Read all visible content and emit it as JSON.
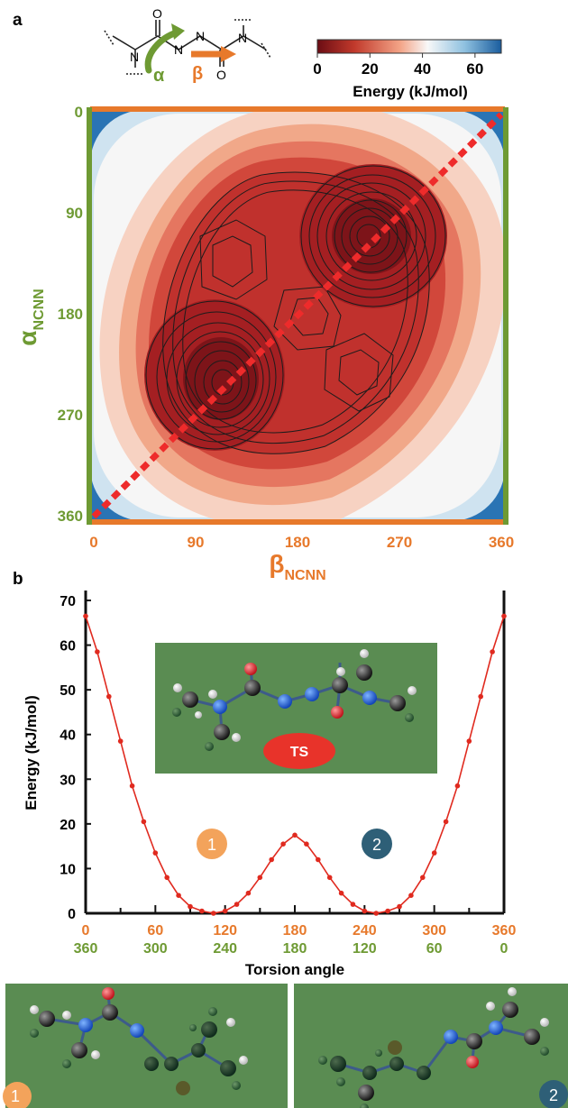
{
  "panel_a": {
    "label": "a",
    "alpha_symbol": "α",
    "beta_symbol": "β",
    "atom_labels": {
      "o1": "O",
      "n1": "N",
      "n2": "N",
      "n3": "N",
      "n4": "N",
      "o2": "O"
    },
    "colorbar": {
      "ticks": [
        "0",
        "20",
        "40",
        "60"
      ],
      "title": "Energy (kJ/mol)",
      "range": [
        0,
        70
      ],
      "colors": [
        "#6b0d14",
        "#c1392b",
        "#f3a487",
        "#f8f8f8",
        "#8fc1e0",
        "#1a5d9e"
      ]
    },
    "y_axis": {
      "symbol": "α",
      "subscript": "NCNN",
      "ticks": [
        "0",
        "90",
        "180",
        "270",
        "360"
      ],
      "color": "#6e9a33"
    },
    "x_axis": {
      "symbol": "β",
      "subscript": "NCNN",
      "ticks": [
        "0",
        "90",
        "180",
        "270",
        "360"
      ],
      "color": "#e7792b"
    },
    "diagonal_color": "#ee2b2b"
  },
  "panel_b": {
    "label": "b",
    "ylabel": "Energy (kJ/mol)",
    "xlabel": "Torsion angle",
    "ts_label": "TS",
    "marker1": "1",
    "marker2": "2",
    "x_ticks_top": [
      "0",
      "60",
      "120",
      "180",
      "240",
      "300",
      "360"
    ],
    "x_ticks_bottom": [
      "360",
      "300",
      "240",
      "180",
      "120",
      "60",
      "0"
    ],
    "y_ticks": [
      "0",
      "10",
      "20",
      "30",
      "40",
      "50",
      "60",
      "70"
    ],
    "line_color": "#e02a1f",
    "marker1_color": "#f3a35b",
    "marker2_color": "#2e5f77"
  },
  "panel_c": {
    "marker1": "1",
    "marker2": "2"
  },
  "chart_data": [
    {
      "type": "heatmap",
      "title": "",
      "xlabel": "βNCNN",
      "ylabel": "αNCNN",
      "xlim": [
        0,
        360
      ],
      "ylim": [
        0,
        360
      ],
      "x_ticks": [
        0,
        90,
        180,
        270,
        360
      ],
      "y_ticks": [
        0,
        90,
        180,
        270,
        360
      ],
      "colorbar": {
        "label": "Energy (kJ/mol)",
        "range": [
          0,
          70
        ],
        "ticks": [
          0,
          20,
          40,
          60
        ]
      },
      "minima": [
        {
          "beta": 110,
          "alpha": 250,
          "energy": 0
        },
        {
          "beta": 250,
          "alpha": 110,
          "energy": 0
        },
        {
          "beta": 180,
          "alpha": 180,
          "energy": 17
        },
        {
          "beta": 120,
          "alpha": 100,
          "energy": 20
        },
        {
          "beta": 240,
          "alpha": 240,
          "energy": 20
        }
      ],
      "annotations": [
        "dashed diagonal from (0,360) to (360,0)"
      ]
    },
    {
      "type": "line",
      "title": "",
      "xlabel": "Torsion angle",
      "ylabel": "Energy (kJ/mol)",
      "xlim": [
        0,
        360
      ],
      "ylim": [
        0,
        70
      ],
      "x": [
        0,
        10,
        20,
        30,
        40,
        50,
        60,
        70,
        80,
        90,
        100,
        110,
        120,
        130,
        140,
        150,
        160,
        170,
        180,
        190,
        200,
        210,
        220,
        230,
        240,
        250,
        260,
        270,
        280,
        290,
        300,
        310,
        320,
        330,
        340,
        350,
        360
      ],
      "series": [
        {
          "values": [
            66.5,
            58.5,
            48.5,
            38.5,
            28.5,
            20.5,
            13.5,
            8,
            4,
            1.5,
            0.5,
            0,
            0.5,
            2,
            4.5,
            8,
            12,
            15.5,
            17.5,
            15.5,
            12,
            8,
            4.5,
            2,
            0.5,
            0,
            0.5,
            1.5,
            4,
            8,
            13.5,
            20.5,
            28.5,
            38.5,
            48.5,
            58.5,
            66.5
          ]
        }
      ],
      "annotations": [
        "TS",
        "1",
        "2"
      ]
    }
  ]
}
